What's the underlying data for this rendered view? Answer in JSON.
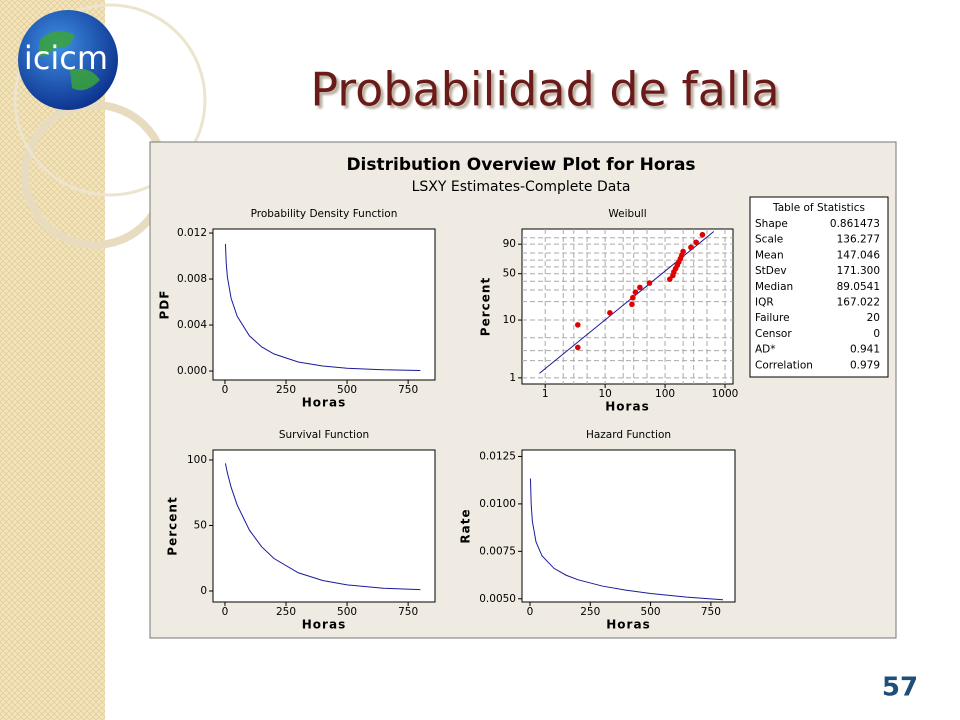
{
  "slide_title": "Probabilidad de falla",
  "logo": "icicm",
  "page_number": "57",
  "figure_title": "Distribution Overview Plot for Horas",
  "figure_subtitle": "LSXY Estimates-Complete Data",
  "statistics": {
    "title": "Table of Statistics",
    "rows": [
      [
        "Shape",
        "0.861473"
      ],
      [
        "Scale",
        "136.277"
      ],
      [
        "Mean",
        "147.046"
      ],
      [
        "StDev",
        "171.300"
      ],
      [
        "Median",
        "89.0541"
      ],
      [
        "IQR",
        "167.022"
      ],
      [
        "Failure",
        "20"
      ],
      [
        "Censor",
        "0"
      ],
      [
        "AD*",
        "0.941"
      ],
      [
        "Correlation",
        "0.979"
      ]
    ]
  },
  "chart_data": [
    {
      "type": "line",
      "title": "Probability Density Function",
      "xlabel": "Horas",
      "ylabel": "PDF",
      "color": "#1a1a9c",
      "x": [
        2,
        5,
        10,
        25,
        50,
        100,
        150,
        200,
        300,
        400,
        500,
        650,
        800
      ],
      "values": [
        0.01105,
        0.00943,
        0.00817,
        0.00634,
        0.004765,
        0.003068,
        0.002105,
        0.001491,
        0.000788,
        0.000435,
        0.000246,
        0.000109,
        5e-05
      ],
      "xlim": [
        -49,
        860
      ],
      "xticks": [
        0,
        250,
        500,
        750
      ],
      "ylim": [
        -0.00078,
        0.01235
      ],
      "yticks": [
        {
          "value": 0,
          "label": "0.000"
        },
        0.004,
        0.008,
        0.012
      ]
    },
    {
      "type": "probability_plot",
      "title": "Weibull",
      "xlabel": "Horas",
      "ylabel": "Percent",
      "color": "#e00000",
      "fit_color": "#1a1a9c",
      "log_x": true,
      "y_scale": "weibull",
      "x": [
        3.5,
        3.5,
        12,
        28,
        29,
        32,
        38,
        55,
        120,
        135,
        140,
        150,
        160,
        170,
        180,
        190,
        200,
        270,
        330,
        420
      ],
      "values": [
        3.4,
        8.3,
        13.2,
        18.1,
        23.0,
        27.9,
        32.8,
        37.7,
        42.6,
        47.5,
        52.5,
        57.4,
        62.3,
        67.2,
        72.1,
        77.0,
        81.9,
        86.8,
        91.7,
        96.6
      ],
      "fit_x": [
        0.8,
        650
      ],
      "fit_values": [
        1.2,
        97.9
      ],
      "xlim": [
        0.41,
        1360
      ],
      "xticks": [
        1,
        10,
        100,
        1000
      ],
      "xgrid": [
        1,
        2,
        3,
        5,
        10,
        20,
        30,
        50,
        100,
        200,
        300,
        500,
        1000
      ],
      "ylim": [
        0.78,
        98.6
      ],
      "yticks": [
        1,
        10,
        50,
        90
      ],
      "ygrid": [
        1,
        2,
        3,
        5,
        10,
        20,
        30,
        40,
        50,
        60,
        70,
        80,
        90,
        95
      ]
    },
    {
      "type": "line",
      "title": "Survival Function",
      "xlabel": "Horas",
      "ylabel": "Percent",
      "color": "#1a1a9c",
      "x": [
        2,
        5,
        10,
        25,
        50,
        100,
        150,
        200,
        300,
        400,
        500,
        650,
        800
      ],
      "values": [
        97.4,
        94.4,
        90.0,
        79.3,
        65.6,
        46.5,
        33.8,
        24.9,
        13.9,
        8.0,
        4.7,
        2.1,
        1.0
      ],
      "xlim": [
        -49,
        860
      ],
      "xticks": [
        0,
        250,
        500,
        750
      ],
      "ylim": [
        -8.4,
        107.6
      ],
      "yticks": [
        0,
        50,
        100
      ]
    },
    {
      "type": "line",
      "title": "Hazard Function",
      "xlabel": "Horas",
      "ylabel": "Rate",
      "color": "#1a1a9c",
      "x": [
        2,
        5,
        10,
        25,
        50,
        100,
        150,
        200,
        300,
        400,
        500,
        650,
        800
      ],
      "values": [
        0.01134,
        0.00999,
        0.00908,
        0.008,
        0.00726,
        0.0066,
        0.00624,
        0.006,
        0.00567,
        0.00545,
        0.00528,
        0.00509,
        0.00495
      ],
      "xlim": [
        -33,
        850
      ],
      "xticks": [
        0,
        250,
        500,
        750
      ],
      "ylim": [
        0.00483,
        0.01284
      ],
      "yticks": [
        {
          "value": 0.005,
          "label": "0.0050"
        },
        0.0075,
        {
          "value": 0.01,
          "label": "0.0100"
        },
        0.0125
      ]
    }
  ]
}
